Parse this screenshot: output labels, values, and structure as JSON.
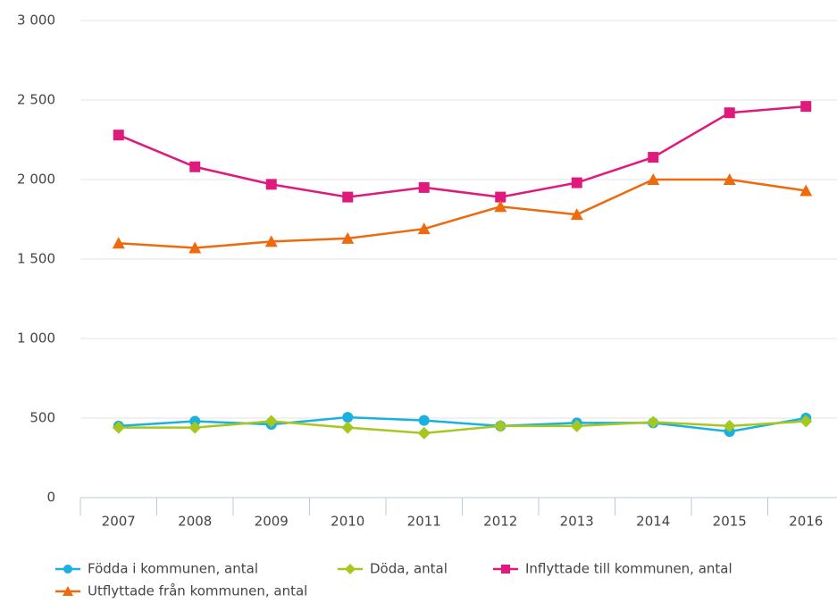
{
  "chart_data": {
    "type": "line",
    "categories": [
      "2007",
      "2008",
      "2009",
      "2010",
      "2011",
      "2012",
      "2013",
      "2014",
      "2015",
      "2016"
    ],
    "series": [
      {
        "name": "Födda i kommunen, antal",
        "color": "#1ab0e0",
        "marker": "circle",
        "values": [
          450,
          480,
          460,
          505,
          485,
          450,
          470,
          470,
          415,
          500
        ]
      },
      {
        "name": "Döda, antal",
        "color": "#a6c81e",
        "marker": "diamond",
        "values": [
          440,
          440,
          480,
          440,
          405,
          450,
          450,
          475,
          450,
          480
        ]
      },
      {
        "name": "Inflyttade till kommunen, antal",
        "color": "#e0197d",
        "marker": "square",
        "values": [
          2280,
          2080,
          1970,
          1890,
          1950,
          1890,
          1980,
          2140,
          2420,
          2460
        ]
      },
      {
        "name": "Utflyttade från kommunen, antal",
        "color": "#ee6a0f",
        "marker": "triangle",
        "values": [
          1600,
          1570,
          1610,
          1630,
          1690,
          1830,
          1780,
          2000,
          2000,
          1930
        ]
      }
    ],
    "ylim": [
      0,
      3000
    ],
    "yticks": [
      0,
      500,
      {
        "value": 1000,
        "label": "1 000"
      },
      {
        "value": 1500,
        "label": "1 500"
      },
      {
        "value": 2000,
        "label": "2 000"
      },
      {
        "value": 2500,
        "label": "2 500"
      },
      {
        "value": 3000,
        "label": "3 000"
      }
    ],
    "grid": true,
    "legend": "bottom"
  }
}
